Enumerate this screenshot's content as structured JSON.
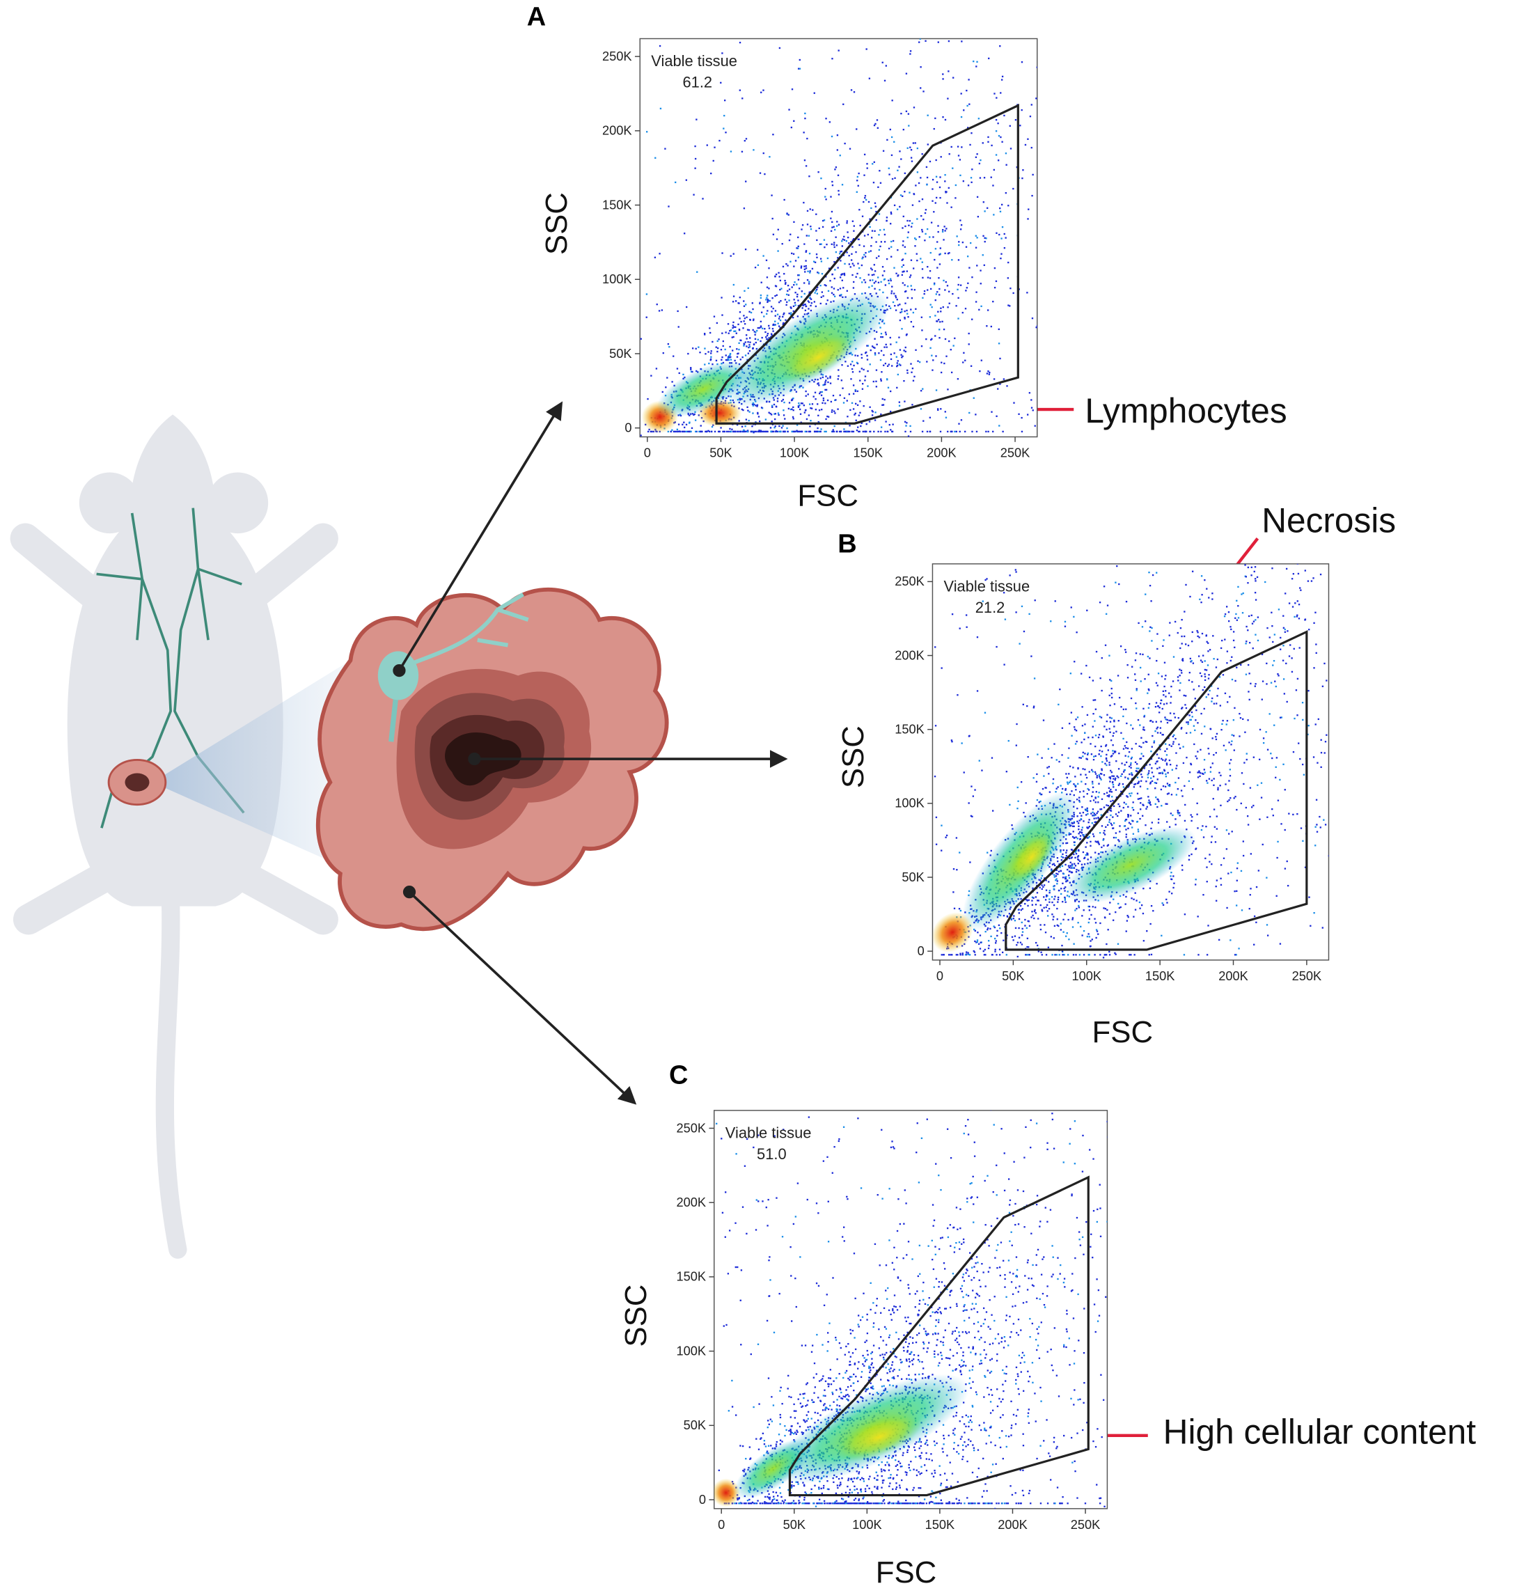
{
  "chart_data": [
    {
      "type": "scatter",
      "panel_label": "A",
      "xlabel": "FSC",
      "ylabel": "SSC",
      "xlim": [
        -5000,
        265000
      ],
      "ylim": [
        -6000,
        262000
      ],
      "xticks": [
        0,
        {
          "value": 50000,
          "label": "50K"
        },
        {
          "value": 100000,
          "label": "100K"
        },
        {
          "value": 150000,
          "label": "150K"
        },
        {
          "value": 200000,
          "label": "200K"
        },
        {
          "value": 250000,
          "label": "250K"
        }
      ],
      "yticks": [
        0,
        {
          "value": 50000,
          "label": "50K"
        },
        {
          "value": 100000,
          "label": "100K"
        },
        {
          "value": 150000,
          "label": "150K"
        },
        {
          "value": 200000,
          "label": "200K"
        },
        {
          "value": 250000,
          "label": "250K"
        }
      ],
      "gate": {
        "name": "Viable tissue",
        "value": 61.2,
        "value_label": "61.2",
        "x": [
          47000,
          47000,
          54000,
          92000,
          194000,
          252000,
          252000,
          141000
        ],
        "y": [
          3000,
          20000,
          31000,
          68000,
          190000,
          217000,
          34000,
          3000
        ]
      },
      "annotation": "Lymphocytes"
    },
    {
      "type": "scatter",
      "panel_label": "B",
      "xlabel": "FSC",
      "ylabel": "SSC",
      "xlim": [
        -5000,
        265000
      ],
      "ylim": [
        -6000,
        262000
      ],
      "xticks": [
        0,
        {
          "value": 50000,
          "label": "50K"
        },
        {
          "value": 100000,
          "label": "100K"
        },
        {
          "value": 150000,
          "label": "150K"
        },
        {
          "value": 200000,
          "label": "200K"
        },
        {
          "value": 250000,
          "label": "250K"
        }
      ],
      "yticks": [
        0,
        {
          "value": 50000,
          "label": "50K"
        },
        {
          "value": 100000,
          "label": "100K"
        },
        {
          "value": 150000,
          "label": "150K"
        },
        {
          "value": 200000,
          "label": "200K"
        },
        {
          "value": 250000,
          "label": "250K"
        }
      ],
      "gate": {
        "name": "Viable tissue",
        "value": 21.2,
        "value_label": "21.2",
        "x": [
          45000,
          45000,
          52000,
          90000,
          192000,
          250000,
          250000,
          141000
        ],
        "y": [
          1000,
          18000,
          30000,
          66000,
          189000,
          216000,
          32000,
          1000
        ]
      },
      "annotation": "Necrosis"
    },
    {
      "type": "scatter",
      "panel_label": "C",
      "xlabel": "FSC",
      "ylabel": "SSC",
      "xlim": [
        -5000,
        265000
      ],
      "ylim": [
        -6000,
        262000
      ],
      "xticks": [
        0,
        {
          "value": 50000,
          "label": "50K"
        },
        {
          "value": 100000,
          "label": "100K"
        },
        {
          "value": 150000,
          "label": "150K"
        },
        {
          "value": 200000,
          "label": "200K"
        },
        {
          "value": 250000,
          "label": "250K"
        }
      ],
      "yticks": [
        0,
        {
          "value": 50000,
          "label": "50K"
        },
        {
          "value": 100000,
          "label": "100K"
        },
        {
          "value": 150000,
          "label": "150K"
        },
        {
          "value": 200000,
          "label": "200K"
        },
        {
          "value": 250000,
          "label": "250K"
        }
      ],
      "gate": {
        "name": "Viable tissue",
        "value": 51,
        "value_label": "51.0",
        "x": [
          47000,
          47000,
          54000,
          92000,
          194000,
          252000,
          252000,
          141000
        ],
        "y": [
          3000,
          20000,
          31000,
          68000,
          190000,
          217000,
          34000,
          3000
        ]
      },
      "annotation": "High cellular content"
    }
  ]
}
